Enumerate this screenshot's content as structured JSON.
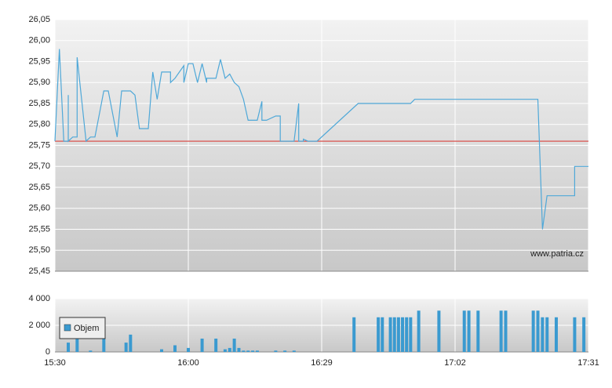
{
  "chart_data": [
    {
      "type": "line",
      "x": [
        "15:30",
        "15:31",
        "15:32",
        "15:33",
        "15:33",
        "15:33",
        "15:34",
        "15:35",
        "15:35",
        "15:37",
        "15:38",
        "15:39",
        "15:41",
        "15:42",
        "15:44",
        "15:44",
        "15:45",
        "15:47",
        "15:48",
        "15:49",
        "15:51",
        "15:52",
        "15:53",
        "15:53",
        "15:54",
        "15:56",
        "15:56",
        "15:57",
        "15:59",
        "15:59",
        "16:00",
        "16:01",
        "16:02",
        "16:03",
        "16:04",
        "16:04",
        "16:06",
        "16:07",
        "16:08",
        "16:09",
        "16:09",
        "16:10",
        "16:11",
        "16:12",
        "16:13",
        "16:15",
        "16:16",
        "16:16",
        "16:17",
        "16:19",
        "16:20",
        "16:20",
        "16:23",
        "16:24",
        "16:24",
        "16:25",
        "16:25",
        "16:26",
        "16:28",
        "16:38",
        "16:51",
        "16:52",
        "17:20",
        "17:21",
        "17:22",
        "17:28",
        "17:28",
        "17:31"
      ],
      "series": [
        {
          "color": "#4fa8d8",
          "values": [
            25.76,
            25.98,
            25.76,
            25.76,
            25.87,
            25.76,
            25.77,
            25.77,
            25.96,
            25.76,
            25.77,
            25.77,
            25.88,
            25.88,
            25.77,
            25.77,
            25.88,
            25.88,
            25.87,
            25.79,
            25.79,
            25.925,
            25.86,
            25.86,
            25.925,
            25.925,
            25.9,
            25.91,
            25.94,
            25.9,
            25.945,
            25.945,
            25.9,
            25.945,
            25.9,
            25.91,
            25.91,
            25.955,
            25.91,
            25.92,
            25.92,
            25.9,
            25.89,
            25.86,
            25.81,
            25.81,
            25.855,
            25.81,
            25.81,
            25.82,
            25.82,
            25.76,
            25.76,
            25.85,
            25.76,
            25.76,
            25.765,
            25.76,
            25.76,
            25.85,
            25.85,
            25.86,
            25.86,
            25.55,
            25.63,
            25.63,
            25.7,
            25.7
          ]
        }
      ],
      "reference_line": {
        "value": 25.76,
        "color": "#d9534f"
      },
      "annotation": "www.patria.cz",
      "xlim": [
        "15:30",
        "17:31"
      ],
      "xticks": [
        "15:30",
        "16:00",
        "16:29",
        "17:02",
        "17:31"
      ],
      "ylim": [
        25.45,
        26.05
      ],
      "yticks": [
        {
          "value": 25.45,
          "label": "25,45"
        },
        {
          "value": 25.5,
          "label": "25,50"
        },
        {
          "value": 25.55,
          "label": "25,55"
        },
        {
          "value": 25.6,
          "label": "25,60"
        },
        {
          "value": 25.65,
          "label": "25,65"
        },
        {
          "value": 25.7,
          "label": "25,70"
        },
        {
          "value": 25.75,
          "label": "25,75"
        },
        {
          "value": 25.8,
          "label": "25,80"
        },
        {
          "value": 25.85,
          "label": "25,85"
        },
        {
          "value": 25.9,
          "label": "25,90"
        },
        {
          "value": 25.95,
          "label": "25,95"
        },
        {
          "value": 26,
          "label": "26,00"
        },
        {
          "value": 26.05,
          "label": "26,05"
        }
      ],
      "grid": true
    },
    {
      "type": "bar",
      "x": [
        "15:33",
        "15:35",
        "15:38",
        "15:41",
        "15:46",
        "15:47",
        "15:54",
        "15:57",
        "16:00",
        "16:03",
        "16:06",
        "16:08",
        "16:09",
        "16:10",
        "16:11",
        "16:12",
        "16:13",
        "16:14",
        "16:15",
        "16:19",
        "16:21",
        "16:23",
        "16:37",
        "16:43",
        "16:44",
        "16:46",
        "16:47",
        "16:48",
        "16:49",
        "16:50",
        "16:51",
        "16:53",
        "16:58",
        "17:04",
        "17:05",
        "17:07",
        "17:12",
        "17:13",
        "17:19",
        "17:20",
        "17:21",
        "17:22",
        "17:24",
        "17:28",
        "17:30"
      ],
      "series": [
        {
          "name": "Objem",
          "color": "#3a9ad0",
          "values": [
            700,
            1000,
            100,
            1000,
            700,
            1300,
            200,
            500,
            300,
            1000,
            1000,
            200,
            300,
            1000,
            300,
            100,
            100,
            100,
            100,
            100,
            100,
            100,
            2600,
            2600,
            2600,
            2600,
            2600,
            2600,
            2600,
            2600,
            2600,
            3100,
            3100,
            3100,
            3100,
            3100,
            3100,
            3100,
            3100,
            3100,
            2600,
            2600,
            2600,
            2600,
            2600
          ]
        }
      ],
      "legend": "left",
      "xlim": [
        "15:30",
        "17:31"
      ],
      "xticks": [
        "15:30",
        "16:00",
        "16:29",
        "17:02",
        "17:31"
      ],
      "ylim": [
        0,
        4000
      ],
      "yticks": [
        0,
        {
          "value": 2000,
          "label": "2 000"
        },
        {
          "value": 4000,
          "label": "4 000"
        }
      ],
      "grid": true
    }
  ]
}
